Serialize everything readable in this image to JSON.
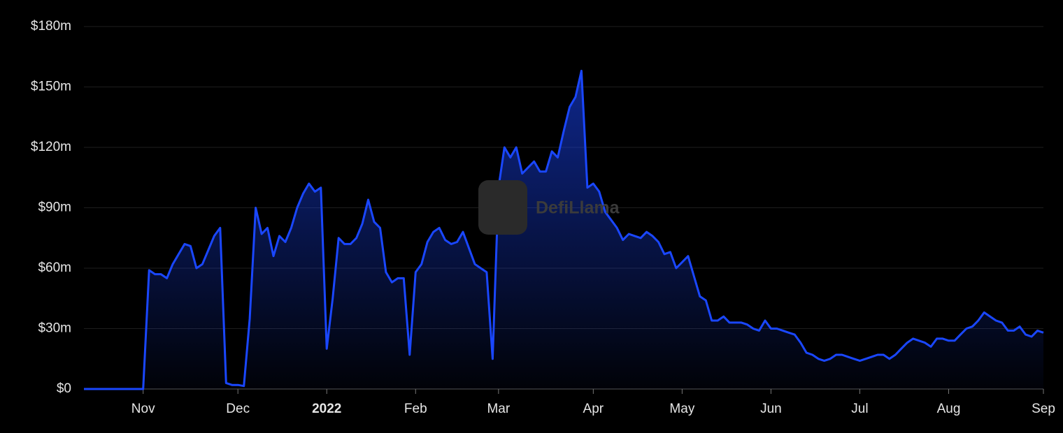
{
  "chart_data": {
    "type": "area",
    "watermark": "DefiLlama",
    "color": "#1a47ff",
    "grid": true,
    "ylim": [
      0,
      180
    ],
    "yticks": [
      {
        "value": 0,
        "label": "$0"
      },
      {
        "value": 30,
        "label": "$30m"
      },
      {
        "value": 60,
        "label": "$60m"
      },
      {
        "value": 90,
        "label": "$90m"
      },
      {
        "value": 120,
        "label": "$120m"
      },
      {
        "value": 150,
        "label": "$150m"
      },
      {
        "value": 180,
        "label": "$180m"
      }
    ],
    "categories": [
      null,
      null,
      null,
      null,
      null,
      null,
      null,
      null,
      null,
      null,
      "Nov",
      null,
      null,
      null,
      null,
      null,
      null,
      null,
      null,
      null,
      null,
      null,
      null,
      null,
      null,
      null,
      "Dec",
      null,
      null,
      null,
      null,
      null,
      null,
      null,
      null,
      null,
      null,
      null,
      null,
      null,
      null,
      "2022",
      null,
      null,
      null,
      null,
      null,
      null,
      null,
      null,
      null,
      null,
      null,
      null,
      null,
      null,
      "Feb",
      null,
      null,
      null,
      null,
      null,
      null,
      null,
      null,
      null,
      null,
      null,
      null,
      null,
      "Mar",
      null,
      null,
      null,
      null,
      null,
      null,
      null,
      null,
      null,
      null,
      null,
      null,
      null,
      null,
      null,
      "Apr",
      null,
      null,
      null,
      null,
      null,
      null,
      null,
      null,
      null,
      null,
      null,
      null,
      null,
      null,
      "May",
      null,
      null,
      null,
      null,
      null,
      null,
      null,
      null,
      null,
      null,
      null,
      null,
      null,
      null,
      "Jun",
      null,
      null,
      null,
      null,
      null,
      null,
      null,
      null,
      null,
      null,
      null,
      null,
      null,
      null,
      "Jul",
      null,
      null,
      null,
      null,
      null,
      null,
      null,
      null,
      null,
      null,
      null,
      null,
      null,
      null,
      "Aug",
      null,
      null,
      null,
      null,
      null,
      null,
      null,
      null,
      null,
      null,
      null,
      null,
      null,
      null,
      null,
      "Sep"
    ],
    "values": [
      0,
      0,
      0,
      0,
      0,
      0,
      0,
      0,
      0,
      0,
      0,
      59,
      57,
      57,
      55,
      62,
      67,
      72,
      71,
      60,
      62,
      69,
      76,
      80,
      3,
      2,
      2,
      1.5,
      35,
      90,
      77,
      80,
      66,
      76,
      73,
      80,
      90,
      97,
      102,
      98,
      100,
      20,
      45,
      75,
      72,
      72,
      75,
      82,
      94,
      83,
      80,
      58,
      53,
      55,
      55,
      17,
      58,
      62,
      73,
      78,
      80,
      74,
      72,
      73,
      78,
      70,
      62,
      60,
      58,
      15,
      100,
      120,
      115,
      120,
      107,
      110,
      113,
      108,
      108,
      118,
      115,
      128,
      140,
      145,
      158,
      100,
      102,
      98,
      88,
      84,
      80,
      74,
      77,
      76,
      75,
      78,
      76,
      73,
      67,
      68,
      60,
      63,
      66,
      56,
      46,
      44,
      34,
      34,
      36,
      33,
      33,
      33,
      32,
      30,
      29,
      34,
      30,
      30,
      29,
      28,
      27,
      23,
      18,
      17,
      15,
      14,
      15,
      17,
      17,
      16,
      15,
      14,
      15,
      16,
      17,
      17,
      15,
      17,
      20,
      23,
      25,
      24,
      23,
      21,
      25,
      25,
      24,
      24,
      27,
      30,
      31,
      34,
      38,
      36,
      34,
      33,
      29,
      29,
      31,
      27,
      26,
      29,
      28
    ]
  }
}
